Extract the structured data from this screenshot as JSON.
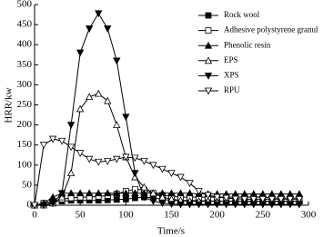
{
  "chart_data": {
    "type": "line",
    "x_label": "Time/s",
    "y_label": "HRR/kw",
    "xlim": [
      0,
      300
    ],
    "ylim": [
      0,
      500
    ],
    "xticks": [
      0,
      50,
      100,
      150,
      200,
      250,
      300
    ],
    "yticks": [
      0,
      50,
      100,
      150,
      200,
      250,
      300,
      350,
      400,
      450,
      500
    ],
    "x": [
      0,
      10,
      20,
      30,
      40,
      50,
      60,
      70,
      80,
      90,
      100,
      110,
      120,
      130,
      140,
      150,
      160,
      170,
      180,
      190,
      200,
      210,
      220,
      230,
      240,
      250,
      260,
      270,
      280,
      290
    ],
    "series": [
      {
        "name": "Rock wool",
        "color": "#000000",
        "marker": "square-filled",
        "values": [
          0,
          5,
          8,
          10,
          12,
          12,
          12,
          12,
          13,
          14,
          15,
          18,
          20,
          18,
          15,
          12,
          12,
          12,
          11,
          11,
          10,
          10,
          10,
          10,
          10,
          10,
          10,
          10,
          10,
          10
        ]
      },
      {
        "name": "Adhesive polystyrene granul",
        "color": "#000000",
        "marker": "square-open",
        "values": [
          0,
          5,
          10,
          15,
          18,
          20,
          20,
          22,
          24,
          28,
          35,
          40,
          38,
          30,
          25,
          22,
          20,
          20,
          20,
          20,
          20,
          20,
          20,
          20,
          20,
          20,
          18,
          18,
          18,
          18
        ]
      },
      {
        "name": "Phenolic resin",
        "color": "#000000",
        "marker": "triangle-up-filled",
        "values": [
          0,
          5,
          20,
          30,
          30,
          30,
          30,
          30,
          30,
          30,
          30,
          30,
          30,
          30,
          30,
          30,
          30,
          30,
          28,
          28,
          28,
          28,
          28,
          28,
          28,
          28,
          28,
          28,
          28,
          28
        ]
      },
      {
        "name": "EPS",
        "color": "#000000",
        "marker": "triangle-up-open",
        "values": [
          0,
          0,
          5,
          20,
          80,
          240,
          270,
          278,
          260,
          200,
          120,
          70,
          45,
          30,
          20,
          15,
          12,
          10,
          10,
          10,
          10,
          10,
          10,
          10,
          10,
          10,
          10,
          10,
          10,
          10
        ]
      },
      {
        "name": "XPS",
        "color": "#000000",
        "marker": "triangle-down-filled",
        "values": [
          0,
          0,
          5,
          30,
          200,
          380,
          440,
          478,
          440,
          360,
          220,
          80,
          20,
          10,
          5,
          3,
          2,
          2,
          2,
          2,
          2,
          2,
          2,
          2,
          2,
          2,
          2,
          2,
          2,
          2
        ]
      },
      {
        "name": "RPU",
        "color": "#000000",
        "marker": "triangle-down-open",
        "values": [
          0,
          150,
          165,
          160,
          145,
          130,
          115,
          108,
          110,
          115,
          120,
          118,
          110,
          100,
          90,
          80,
          70,
          55,
          35,
          25,
          20,
          18,
          16,
          15,
          15,
          15,
          15,
          15,
          15,
          15
        ]
      }
    ]
  }
}
